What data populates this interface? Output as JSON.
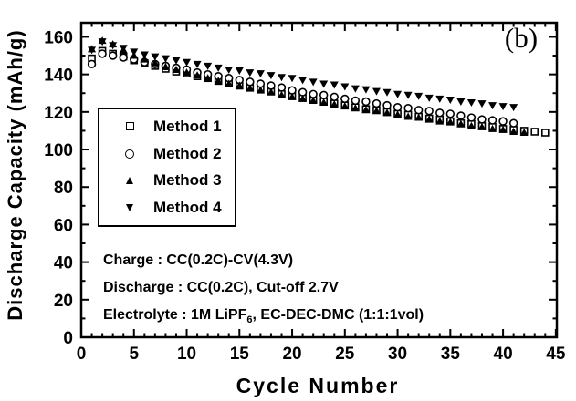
{
  "figure": {
    "panel_label": "(b)",
    "background_color": "#ffffff",
    "ink_color": "#000000"
  },
  "chart_data": {
    "type": "scatter",
    "title": "",
    "xlabel": "Cycle Number",
    "ylabel": "Discharge Capacity (mAh/g)",
    "xlim": [
      0,
      45.1
    ],
    "ylim": [
      0,
      167.5
    ],
    "x_major_ticks": [
      0,
      5,
      10,
      15,
      20,
      25,
      30,
      35,
      40,
      45
    ],
    "x_minor_step": 1,
    "y_major_ticks": [
      0,
      20,
      40,
      60,
      80,
      100,
      120,
      140,
      160
    ],
    "y_minor_step": 10,
    "grid": false,
    "legend_position": "inside-upper-left",
    "series": [
      {
        "name": "Method 1",
        "marker": "open-square",
        "x": [
          1,
          2,
          3,
          4,
          5,
          6,
          7,
          8,
          9,
          10,
          11,
          12,
          13,
          14,
          15,
          16,
          17,
          18,
          19,
          20,
          21,
          22,
          23,
          24,
          25,
          26,
          27,
          28,
          29,
          30,
          31,
          32,
          33,
          34,
          35,
          36,
          37,
          38,
          39,
          40,
          41,
          42,
          43,
          44
        ],
        "y": [
          148.5,
          152.5,
          151,
          149.5,
          147.5,
          146,
          144.5,
          143,
          141.5,
          140.5,
          139,
          138,
          136.5,
          135.5,
          134,
          133,
          132,
          131,
          129.5,
          128.5,
          127.5,
          126.5,
          125.5,
          124.5,
          123.5,
          122.5,
          121.5,
          121,
          120,
          119,
          118.5,
          117.5,
          116.5,
          116,
          115,
          114,
          113.5,
          112.5,
          112,
          111,
          110.5,
          110,
          109.5,
          109
        ]
      },
      {
        "name": "Method 2",
        "marker": "open-circle",
        "x": [
          1,
          2,
          3,
          4,
          5,
          6,
          7,
          8,
          9,
          10,
          11,
          12,
          13,
          14,
          15,
          16,
          17,
          18,
          19,
          20,
          21,
          22,
          23,
          24,
          25,
          26,
          27,
          28,
          29,
          30,
          31,
          32,
          33,
          34,
          35,
          36,
          37,
          38,
          39,
          40,
          41
        ],
        "y": [
          145.5,
          151,
          150,
          149,
          148,
          146.5,
          145.5,
          144.5,
          143.5,
          142.5,
          141,
          140,
          139,
          138,
          137,
          136,
          135,
          134,
          133,
          131.5,
          130.5,
          129.5,
          129,
          128,
          127,
          126,
          125.5,
          124.5,
          123.5,
          122.5,
          122,
          121,
          120.5,
          119.5,
          119,
          118,
          117,
          116,
          115.5,
          115,
          114
        ]
      },
      {
        "name": "Method 3",
        "marker": "filled-triangle-up",
        "x": [
          1,
          2,
          3,
          4,
          5,
          6,
          7,
          8,
          9,
          10,
          11,
          12,
          13,
          14,
          15,
          16,
          17,
          18,
          19,
          20,
          21,
          22,
          23,
          24,
          25,
          26,
          27,
          28,
          29,
          30,
          31,
          32,
          33,
          34,
          35,
          36,
          37,
          38,
          39,
          40,
          41,
          42
        ],
        "y": [
          153.5,
          158,
          156,
          153,
          150,
          148,
          146,
          144,
          142.5,
          141,
          139.5,
          138,
          136.5,
          135,
          134,
          132.5,
          131.5,
          130.5,
          129,
          128,
          127,
          126,
          125,
          124,
          123,
          122,
          121,
          120.5,
          119.5,
          118.5,
          117.5,
          117,
          116,
          115,
          114.5,
          113.5,
          112.5,
          112,
          111,
          110.5,
          109.5,
          109
        ]
      },
      {
        "name": "Method 4",
        "marker": "filled-triangle-down",
        "x": [
          1,
          2,
          3,
          4,
          5,
          6,
          7,
          8,
          9,
          10,
          11,
          12,
          13,
          14,
          15,
          16,
          17,
          18,
          19,
          20,
          21,
          22,
          23,
          24,
          25,
          26,
          27,
          28,
          29,
          30,
          31,
          32,
          33,
          34,
          35,
          36,
          37,
          38,
          39,
          40,
          41
        ],
        "y": [
          153,
          157.5,
          155.5,
          154,
          152,
          150.5,
          149.5,
          148.5,
          147.5,
          146.5,
          145.5,
          144.5,
          143.5,
          142.5,
          142,
          141,
          140.5,
          139.5,
          138.5,
          138,
          137,
          136,
          135,
          134.5,
          133.5,
          132.5,
          132,
          131,
          130.5,
          129.5,
          129,
          128.5,
          127.5,
          127,
          126.5,
          125.5,
          125,
          124.5,
          123.5,
          123,
          122.5
        ]
      }
    ],
    "annotations": {
      "charge": "Charge : CC(0.2C)-CV(4.3V)",
      "discharge": "Discharge : CC(0.2C), Cut-off 2.7V",
      "electrolyte_prefix": "Electrolyte : 1M LiPF",
      "electrolyte_sub": "6",
      "electrolyte_suffix": ", EC-DEC-DMC (1:1:1vol)"
    }
  }
}
